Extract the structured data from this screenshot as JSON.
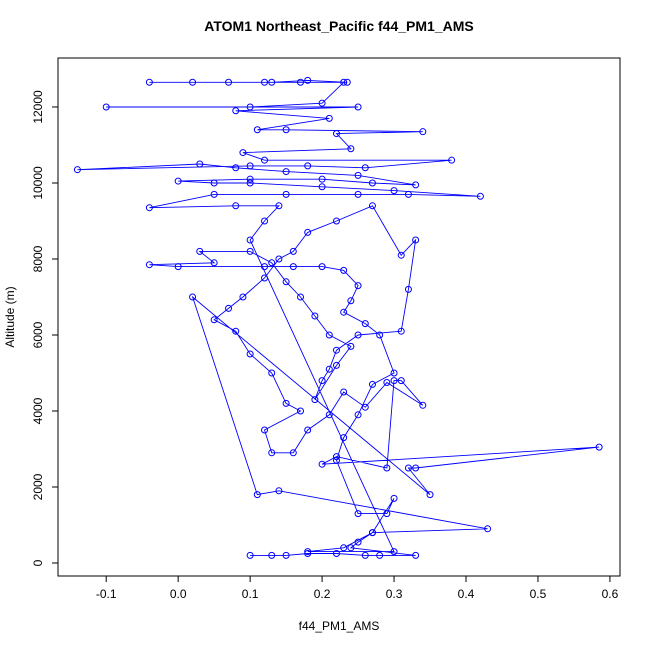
{
  "chart_data": {
    "type": "scatter",
    "title": "ATOM1 Northeast_Pacific f44_PM1_AMS",
    "x_label": "f44_PM1_AMS",
    "y_label": "Altitude (m)",
    "color": "#0000ff",
    "xlim": [
      -0.167,
      0.614
    ],
    "ylim": [
      -342,
      13289
    ],
    "xticks": [
      -0.1,
      {
        "value": 0,
        "label": "0.0"
      },
      0.1,
      0.2,
      0.3,
      0.4,
      0.5,
      0.6
    ],
    "yticks": [
      0,
      2000,
      4000,
      6000,
      8000,
      10000,
      12000
    ],
    "x": [
      0.1,
      0.13,
      0.15,
      0.18,
      0.22,
      0.26,
      0.28,
      0.33,
      0.24,
      0.25,
      0.27,
      0.43,
      0.14,
      0.11,
      0.02,
      0.35,
      0.32,
      0.33,
      0.585,
      0.2,
      0.22,
      0.29,
      0.3,
      0.31,
      0.34,
      0.29,
      0.26,
      0.23,
      0.21,
      0.18,
      0.16,
      0.13,
      0.12,
      0.17,
      0.15,
      0.13,
      0.1,
      0.08,
      0.05,
      0.07,
      0.09,
      0.12,
      0.14,
      0.16,
      0.18,
      0.22,
      0.27,
      0.31,
      0.33,
      0.32,
      0.31,
      0.25,
      0.22,
      0.21,
      0.2,
      0.19,
      0.22,
      0.24,
      0.21,
      0.19,
      0.17,
      0.15,
      0.13,
      0.1,
      0.03,
      0.05,
      -0.04,
      0.0,
      0.12,
      0.16,
      0.2,
      0.23,
      0.25,
      0.24,
      0.23,
      0.26,
      0.28,
      0.3,
      0.27,
      0.25,
      0.23,
      0.22,
      0.25,
      0.29,
      0.3,
      0.27,
      0.23,
      0.18,
      0.3,
      0.1,
      0.12,
      0.14,
      0.08,
      -0.04,
      0.05,
      0.15,
      0.25,
      0.32,
      0.42,
      0.3,
      0.2,
      0.1,
      0.05,
      0.0,
      0.1,
      0.2,
      0.27,
      0.33,
      0.25,
      0.15,
      0.08,
      0.03,
      -0.14,
      0.1,
      0.18,
      0.26,
      0.38,
      0.12,
      0.09,
      0.24,
      0.22,
      0.34,
      0.15,
      0.11,
      0.21,
      0.08,
      0.25,
      -0.1,
      0.1,
      0.2,
      0.23,
      0.17,
      0.12,
      0.07,
      0.02,
      -0.04,
      0.13,
      0.18,
      0.235
    ],
    "values": [
      200,
      200,
      200,
      250,
      250,
      200,
      200,
      200,
      400,
      550,
      800,
      900,
      1900,
      1800,
      7000,
      1800,
      2500,
      2500,
      3050,
      2600,
      2800,
      2500,
      4800,
      4800,
      4150,
      4750,
      4100,
      4500,
      3900,
      3500,
      2900,
      2900,
      3500,
      4000,
      4200,
      5000,
      5500,
      6100,
      6400,
      6700,
      7000,
      7500,
      8000,
      8200,
      8700,
      9000,
      9400,
      8100,
      8500,
      7200,
      6100,
      6000,
      5600,
      5100,
      4800,
      4300,
      5200,
      5700,
      6000,
      6500,
      7000,
      7400,
      7900,
      8200,
      8200,
      7900,
      7850,
      7800,
      7800,
      7800,
      7800,
      7700,
      7300,
      6900,
      6600,
      6300,
      6000,
      5000,
      4700,
      3900,
      3300,
      2700,
      1300,
      1300,
      1700,
      800,
      400,
      300,
      300,
      8500,
      9000,
      9400,
      9400,
      9350,
      9700,
      9700,
      9700,
      9700,
      9650,
      9800,
      9900,
      10000,
      10000,
      10050,
      10100,
      10100,
      10000,
      9950,
      10200,
      10300,
      10400,
      10500,
      10350,
      10450,
      10450,
      10400,
      10600,
      10600,
      10800,
      10900,
      11300,
      11350,
      11400,
      11400,
      11700,
      11900,
      12000,
      12000,
      12000,
      12100,
      12650,
      12650,
      12650,
      12650,
      12650,
      12650,
      12650,
      12700,
      12650
    ]
  }
}
